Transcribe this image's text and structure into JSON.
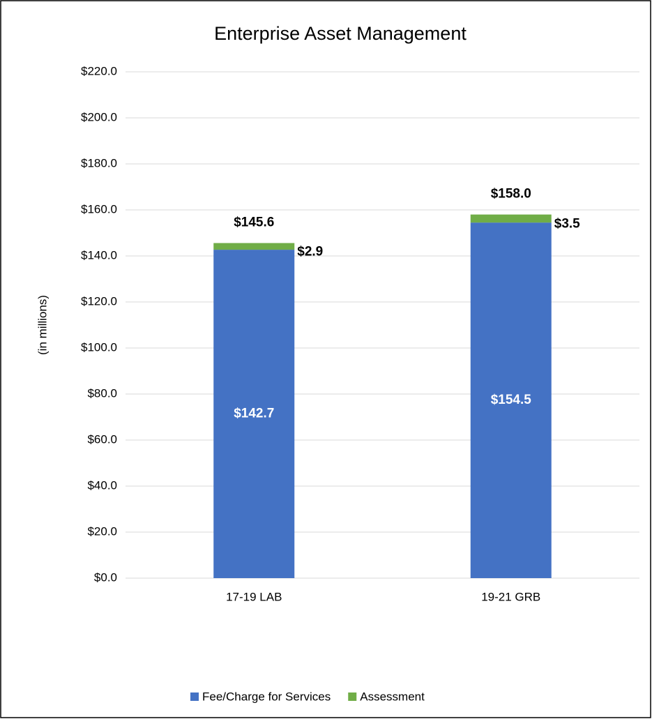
{
  "chart_data": {
    "type": "stacked_bar",
    "title": "Enterprise Asset Management",
    "y_label": "(in millions)",
    "categories": [
      "17-19 LAB",
      "19-21 GRB"
    ],
    "series": [
      {
        "name": "Fee/Charge for Services",
        "color": "#4472c4",
        "values": [
          142.7,
          154.5
        ],
        "value_labels": [
          "$142.7",
          "$154.5"
        ]
      },
      {
        "name": "Assessment",
        "color": "#70ad47",
        "values": [
          2.9,
          3.5
        ],
        "value_labels": [
          "$2.9",
          "$3.5"
        ]
      }
    ],
    "totals": [
      145.6,
      158.0
    ],
    "total_labels": [
      "$145.6",
      "$158.0"
    ],
    "ylim": [
      0,
      220
    ],
    "yticks": [
      {
        "value": 0,
        "label": "$0.0"
      },
      {
        "value": 20,
        "label": "$20.0"
      },
      {
        "value": 40,
        "label": "$40.0"
      },
      {
        "value": 60,
        "label": "$60.0"
      },
      {
        "value": 80,
        "label": "$80.0"
      },
      {
        "value": 100,
        "label": "$100.0"
      },
      {
        "value": 120,
        "label": "$120.0"
      },
      {
        "value": 140,
        "label": "$140.0"
      },
      {
        "value": 160,
        "label": "$160.0"
      },
      {
        "value": 180,
        "label": "$180.0"
      },
      {
        "value": 200,
        "label": "$200.0"
      },
      {
        "value": 220,
        "label": "$220.0"
      }
    ],
    "grid": true,
    "legend": "bottom"
  }
}
